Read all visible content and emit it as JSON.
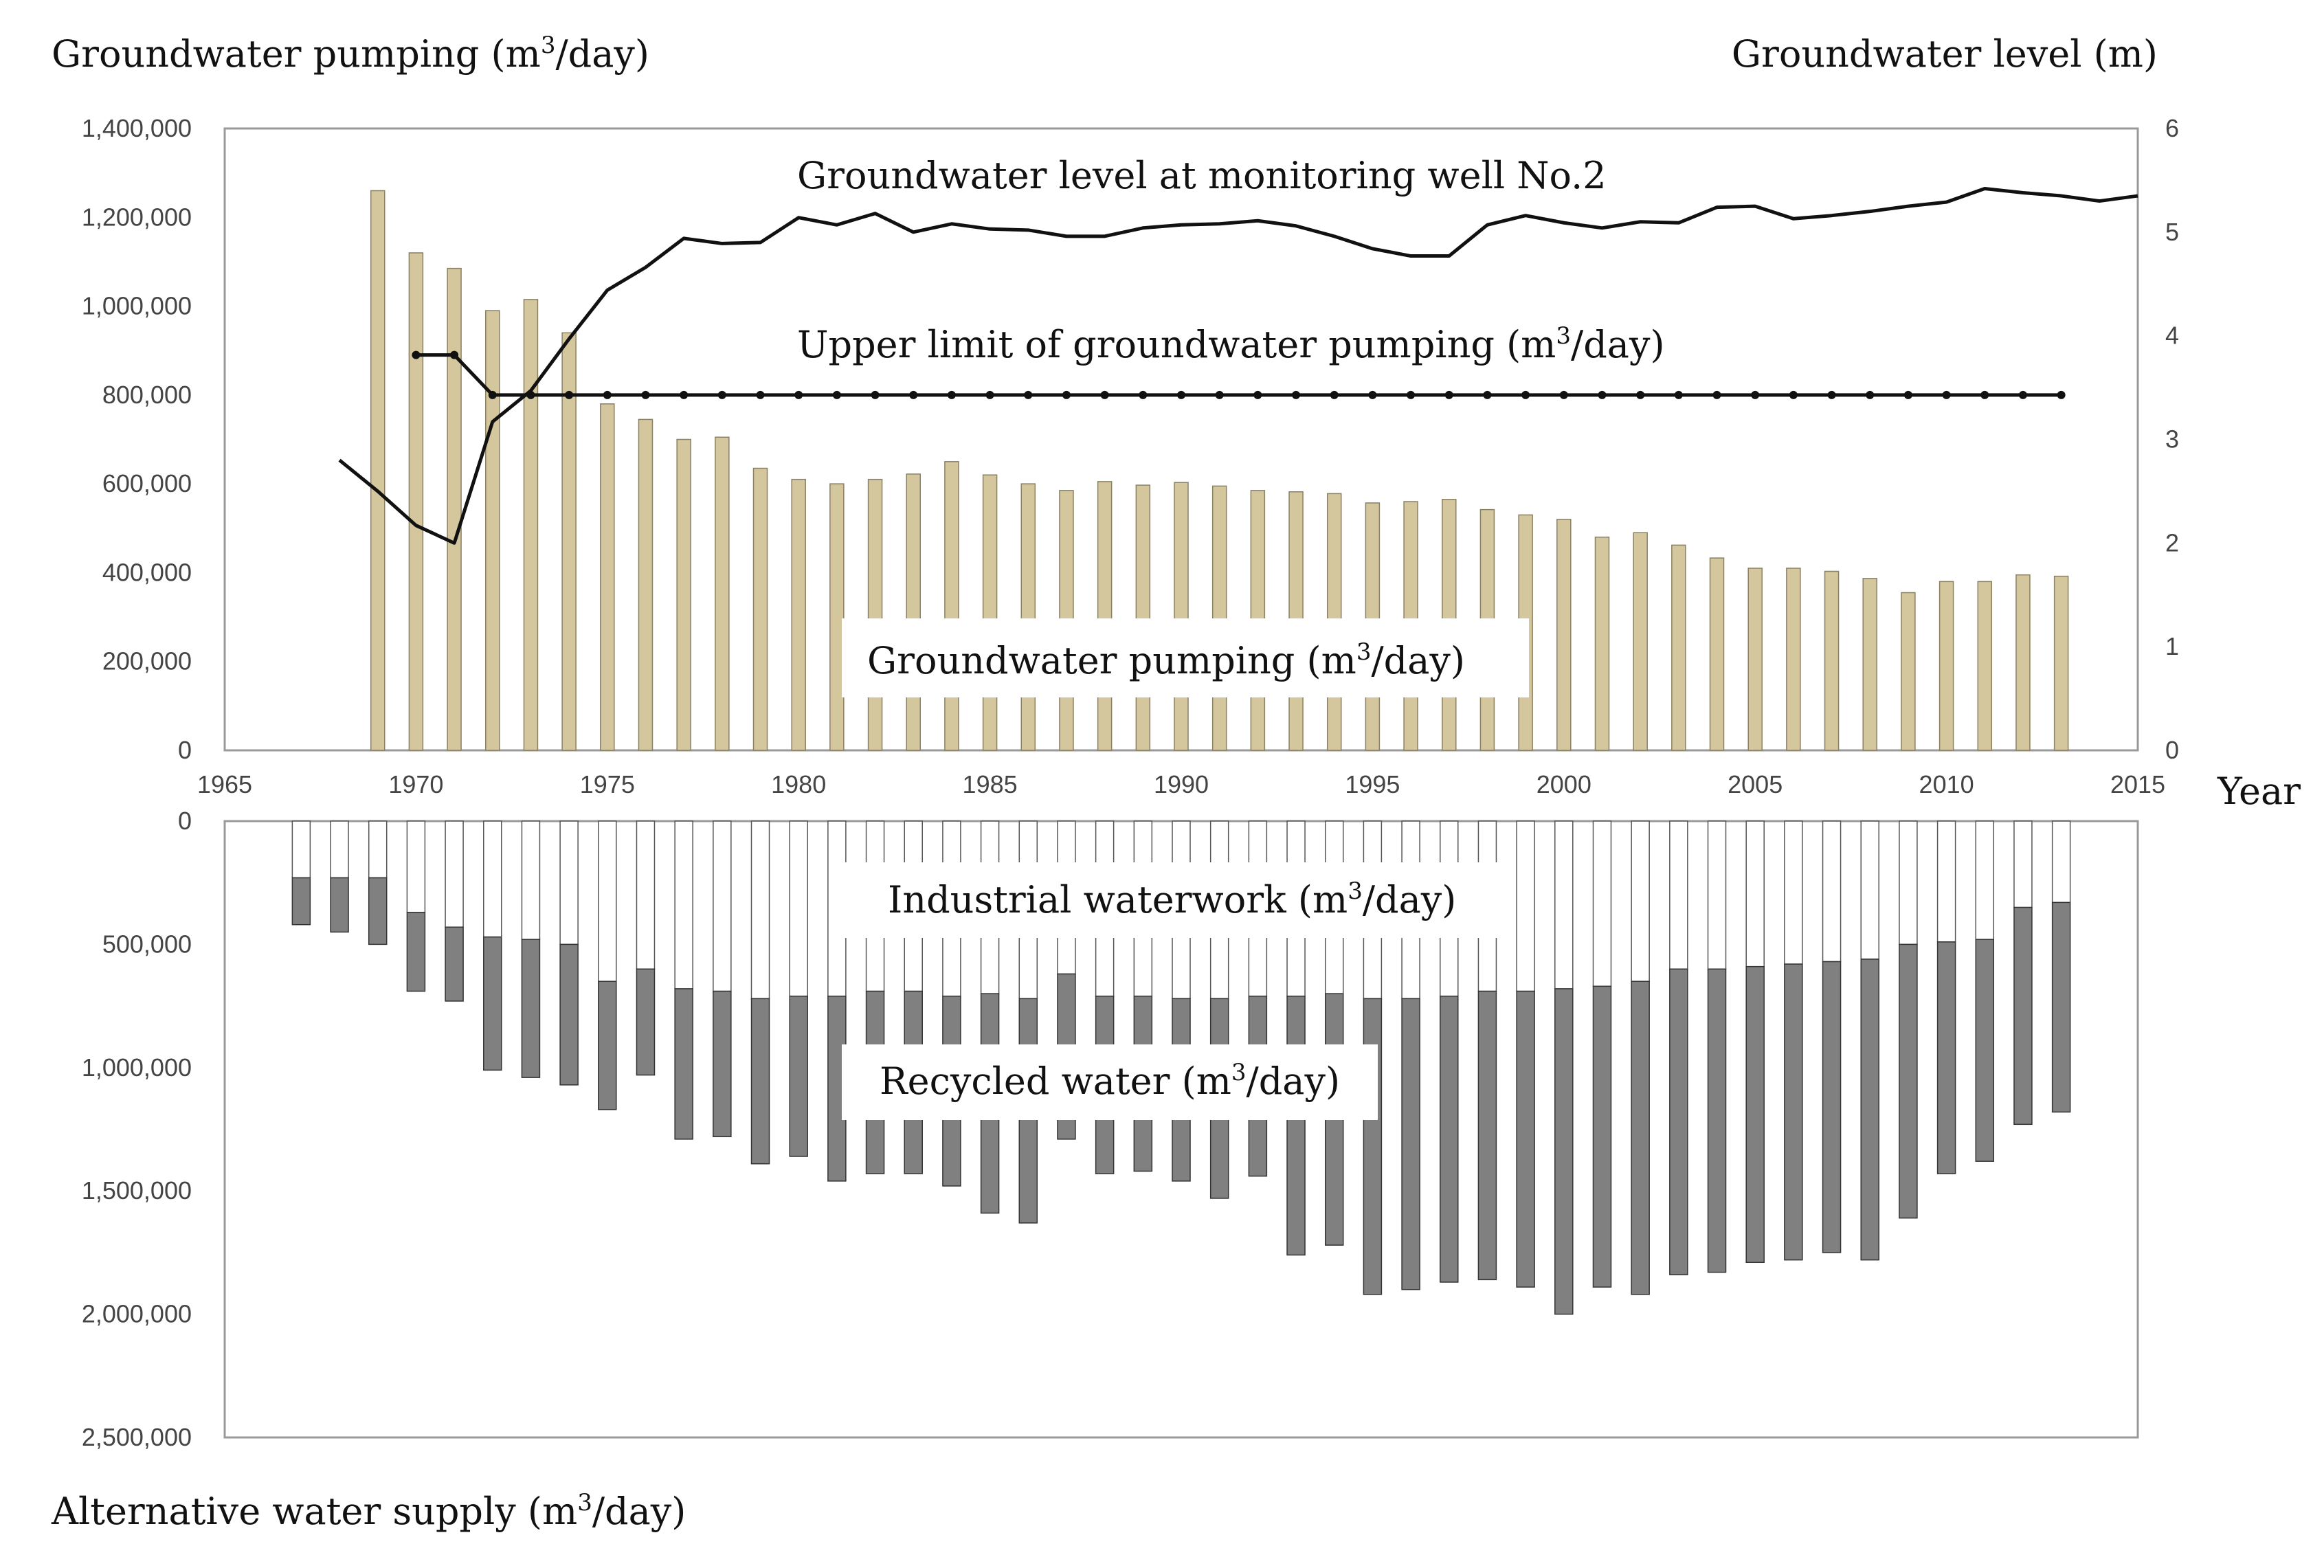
{
  "chart_data": [
    {
      "type": "bar",
      "panel": "top",
      "title_left": "Groundwater pumping (m3/day)",
      "title_left_parts": {
        "before": "Groundwater pumping (m",
        "sup": "3",
        "after": "/day)"
      },
      "title_right": "Groundwater level (m)",
      "xlabel": "Year",
      "xlim": [
        1965,
        2015
      ],
      "xticks": [
        1965,
        1970,
        1975,
        1980,
        1985,
        1990,
        1995,
        2000,
        2005,
        2010,
        2015
      ],
      "ylim_left": [
        0,
        1400000
      ],
      "yticks_left": [
        0,
        200000,
        400000,
        600000,
        800000,
        1000000,
        1200000,
        1400000
      ],
      "yticks_left_labels": [
        "0",
        "200,000",
        "400,000",
        "600,000",
        "800,000",
        "1,000,000",
        "1,200,000",
        "1,400,000"
      ],
      "ylim_right": [
        0,
        6
      ],
      "yticks_right": [
        0,
        1,
        2,
        3,
        4,
        5,
        6
      ],
      "yticks_right_labels": [
        "0",
        "1",
        "2",
        "3",
        "4",
        "5",
        "6"
      ],
      "series": [
        {
          "name": "Groundwater pumping (m3/day)",
          "label_parts": {
            "before": "Groundwater pumping (m",
            "sup": "3",
            "after": "/day)"
          },
          "kind": "bar",
          "axis": "left",
          "color": "#d4c79e",
          "x": [
            1969,
            1970,
            1971,
            1972,
            1973,
            1974,
            1975,
            1976,
            1977,
            1978,
            1979,
            1980,
            1981,
            1982,
            1983,
            1984,
            1985,
            1986,
            1987,
            1988,
            1989,
            1990,
            1991,
            1992,
            1993,
            1994,
            1995,
            1996,
            1997,
            1998,
            1999,
            2000,
            2001,
            2002,
            2003,
            2004,
            2005,
            2006,
            2007,
            2008,
            2009,
            2010,
            2011,
            2012,
            2013
          ],
          "values": [
            1260000,
            1120000,
            1085000,
            990000,
            1015000,
            940000,
            780000,
            745000,
            700000,
            705000,
            635000,
            610000,
            600000,
            610000,
            622000,
            650000,
            620000,
            600000,
            585000,
            605000,
            597000,
            603000,
            595000,
            585000,
            582000,
            578000,
            557000,
            560000,
            565000,
            542000,
            530000,
            520000,
            480000,
            490000,
            462000,
            433000,
            410000,
            410000,
            403000,
            387000,
            355000,
            380000,
            380000,
            395000,
            392000
          ]
        },
        {
          "name": "Upper limit of groundwater pumping (m3/day)",
          "label_parts": {
            "before": "Upper limit of groundwater pumping (m",
            "sup": "3",
            "after": "/day)"
          },
          "kind": "line-markers",
          "axis": "left",
          "color": "#111111",
          "x": [
            1970,
            1971,
            1972,
            1973,
            1974,
            1975,
            1976,
            1977,
            1978,
            1979,
            1980,
            1981,
            1982,
            1983,
            1984,
            1985,
            1986,
            1987,
            1988,
            1989,
            1990,
            1991,
            1992,
            1993,
            1994,
            1995,
            1996,
            1997,
            1998,
            1999,
            2000,
            2001,
            2002,
            2003,
            2004,
            2005,
            2006,
            2007,
            2008,
            2009,
            2010,
            2011,
            2012,
            2013
          ],
          "values": [
            890000,
            890000,
            800000,
            800000,
            800000,
            800000,
            800000,
            800000,
            800000,
            800000,
            800000,
            800000,
            800000,
            800000,
            800000,
            800000,
            800000,
            800000,
            800000,
            800000,
            800000,
            800000,
            800000,
            800000,
            800000,
            800000,
            800000,
            800000,
            800000,
            800000,
            800000,
            800000,
            800000,
            800000,
            800000,
            800000,
            800000,
            800000,
            800000,
            800000,
            800000,
            800000,
            800000,
            800000
          ]
        },
        {
          "name": "Groundwater level at monitoring well No.2",
          "kind": "line",
          "axis": "right",
          "color": "#111111",
          "x": [
            1968,
            1969,
            1970,
            1971,
            1972,
            1973,
            1974,
            1975,
            1976,
            1977,
            1978,
            1979,
            1980,
            1981,
            1982,
            1983,
            1984,
            1985,
            1986,
            1987,
            1988,
            1989,
            1990,
            1991,
            1992,
            1993,
            1994,
            1995,
            1996,
            1997,
            1998,
            1999,
            2000,
            2001,
            2002,
            2003,
            2004,
            2005,
            2006,
            2007,
            2008,
            2009,
            2010,
            2011,
            2012,
            2013,
            2014,
            2015
          ],
          "values": [
            2.8,
            2.5,
            2.17,
            2.0,
            3.17,
            3.47,
            3.97,
            4.44,
            4.66,
            4.94,
            4.89,
            4.9,
            5.14,
            5.07,
            5.18,
            5.0,
            5.08,
            5.03,
            5.02,
            4.96,
            4.96,
            5.04,
            5.07,
            5.08,
            5.11,
            5.06,
            4.96,
            4.84,
            4.77,
            4.77,
            5.07,
            5.16,
            5.09,
            5.04,
            5.1,
            5.09,
            5.24,
            5.25,
            5.13,
            5.16,
            5.2,
            5.25,
            5.29,
            5.42,
            5.38,
            5.35,
            5.3,
            5.35
          ]
        }
      ],
      "annotations": [
        {
          "name": "label-groundwater-level",
          "text": "Groundwater level at monitoring well No.2"
        }
      ]
    },
    {
      "type": "bar",
      "panel": "bottom",
      "stacked": true,
      "inverted_y": true,
      "ylabel": "Alternative water supply (m3/day)",
      "ylabel_parts": {
        "before": "Alternative water supply (m",
        "sup": "3",
        "after": "/day)"
      },
      "ylim": [
        0,
        2500000
      ],
      "yticks": [
        0,
        500000,
        1000000,
        1500000,
        2000000,
        2500000
      ],
      "yticks_labels": [
        "0",
        "500,000",
        "1,000,000",
        "1,500,000",
        "2,000,000",
        "2,500,000"
      ],
      "x": [
        1967,
        1968,
        1969,
        1970,
        1971,
        1972,
        1973,
        1974,
        1975,
        1976,
        1977,
        1978,
        1979,
        1980,
        1981,
        1982,
        1983,
        1984,
        1985,
        1986,
        1987,
        1988,
        1989,
        1990,
        1991,
        1992,
        1993,
        1994,
        1995,
        1996,
        1997,
        1998,
        1999,
        2000,
        2001,
        2002,
        2003,
        2004,
        2005,
        2006,
        2007,
        2008,
        2009,
        2010,
        2011,
        2012,
        2013
      ],
      "series": [
        {
          "name": "Industrial waterwork (m3/day)",
          "label_parts": {
            "before": "Industrial waterwork (m",
            "sup": "3",
            "after": "/day)"
          },
          "color": "#ffffff",
          "values": [
            230000,
            230000,
            230000,
            370000,
            430000,
            470000,
            480000,
            500000,
            650000,
            600000,
            680000,
            690000,
            720000,
            710000,
            710000,
            690000,
            690000,
            710000,
            700000,
            720000,
            620000,
            710000,
            710000,
            720000,
            720000,
            710000,
            710000,
            700000,
            720000,
            720000,
            710000,
            690000,
            690000,
            680000,
            670000,
            650000,
            600000,
            600000,
            590000,
            580000,
            570000,
            560000,
            500000,
            490000,
            480000,
            350000,
            330000
          ]
        },
        {
          "name": "Recycled water (m3/day)",
          "label_parts": {
            "before": "Recycled water (m",
            "sup": "3",
            "after": "/day)"
          },
          "color": "#808080",
          "values": [
            190000,
            220000,
            270000,
            320000,
            300000,
            540000,
            560000,
            570000,
            520000,
            430000,
            610000,
            590000,
            670000,
            650000,
            750000,
            740000,
            740000,
            770000,
            890000,
            910000,
            670000,
            720000,
            710000,
            740000,
            810000,
            730000,
            1050000,
            1020000,
            1200000,
            1180000,
            1160000,
            1170000,
            1200000,
            1320000,
            1220000,
            1270000,
            1240000,
            1230000,
            1200000,
            1200000,
            1180000,
            1220000,
            1110000,
            940000,
            900000,
            880000,
            850000
          ]
        }
      ]
    }
  ]
}
